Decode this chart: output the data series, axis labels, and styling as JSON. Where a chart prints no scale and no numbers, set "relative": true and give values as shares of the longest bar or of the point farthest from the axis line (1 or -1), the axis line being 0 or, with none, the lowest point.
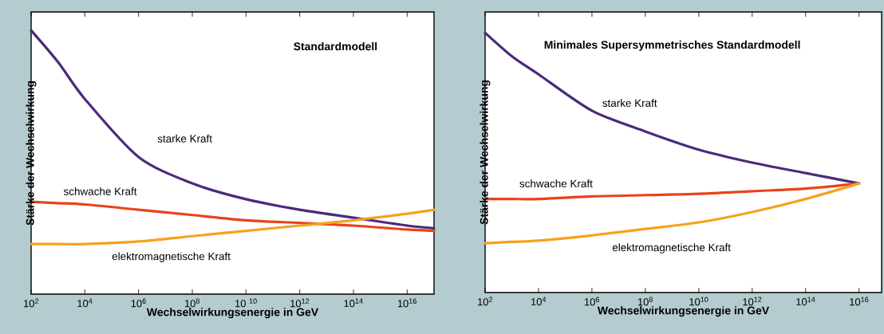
{
  "chart_data": [
    {
      "type": "line",
      "title": "Standardmodell",
      "xlabel": "Wechselwirkungsenergie in GeV",
      "ylabel": "Stärke der Wechselwirkung",
      "log": "x",
      "relative": true,
      "xlim": [
        100,
        1e+17
      ],
      "xticks": [
        {
          "value": 100,
          "label": "10$^{2}$"
        },
        {
          "value": 10000.0,
          "label": "10$^{4}$"
        },
        {
          "value": 1000000.0,
          "label": "10$^{6}$"
        },
        {
          "value": 100000000.0,
          "label": "10$^{8}$"
        },
        {
          "value": 10000000000.0,
          "label": "10 $^{10}$"
        },
        {
          "value": 1000000000000.0,
          "label": "10$^{12}$"
        },
        {
          "value": 100000000000000.0,
          "label": "10$^{14}$"
        },
        {
          "value": 1e+16,
          "label": "10$^{16}$"
        }
      ],
      "x": [
        100,
        1000,
        10000.0,
        1000000.0,
        100000000.0,
        10000000000.0,
        1000000000000.0,
        100000000000000.0,
        1e+16,
        1e+17
      ],
      "series": [
        {
          "name": "starke Kraft",
          "color": "#4b2a7b",
          "values": [
            1.0,
            0.88,
            0.74,
            0.52,
            0.42,
            0.36,
            0.32,
            0.29,
            0.26,
            0.25
          ]
        },
        {
          "name": "schwache Kraft",
          "color": "#e8431a",
          "values": [
            0.35,
            0.345,
            0.34,
            0.32,
            0.3,
            0.28,
            0.27,
            0.26,
            0.245,
            0.24
          ]
        },
        {
          "name": "elektromagnetische Kraft",
          "color": "#f5a21c",
          "values": [
            0.19,
            0.19,
            0.19,
            0.2,
            0.22,
            0.24,
            0.26,
            0.28,
            0.305,
            0.32
          ]
        }
      ]
    },
    {
      "type": "line",
      "title": "Minimales Supersymmetrisches Standardmodell",
      "xlabel": "Wechselwirkungsenergie in GeV",
      "ylabel": "Stärke der Wechselwirkung",
      "log": "x",
      "relative": true,
      "xlim": [
        100,
        7e+16
      ],
      "xticks": [
        {
          "value": 100,
          "label": "10$^{2}$"
        },
        {
          "value": 10000.0,
          "label": "10$^{4}$"
        },
        {
          "value": 1000000.0,
          "label": "10$^{6}$"
        },
        {
          "value": 100000000.0,
          "label": "10$^{8}$"
        },
        {
          "value": 10000000000.0,
          "label": "10$^{10}$"
        },
        {
          "value": 1000000000000.0,
          "label": "10$^{12}$"
        },
        {
          "value": 100000000000000.0,
          "label": "10$^{14}$"
        },
        {
          "value": 1e+16,
          "label": "10$^{16}$"
        }
      ],
      "x": [
        100,
        1000,
        10000.0,
        1000000.0,
        100000000.0,
        10000000000.0,
        1000000000000.0,
        100000000000000.0,
        1e+16
      ],
      "series": [
        {
          "name": "starke Kraft",
          "color": "#4b2a7b",
          "values": [
            1.0,
            0.91,
            0.84,
            0.7,
            0.62,
            0.55,
            0.5,
            0.46,
            0.42
          ]
        },
        {
          "name": "schwache Kraft",
          "color": "#e8431a",
          "values": [
            0.36,
            0.36,
            0.36,
            0.37,
            0.375,
            0.38,
            0.39,
            0.4,
            0.42
          ]
        },
        {
          "name": "elektromagnetische Kraft",
          "color": "#f5a21c",
          "values": [
            0.19,
            0.195,
            0.2,
            0.22,
            0.245,
            0.27,
            0.31,
            0.36,
            0.42
          ]
        }
      ]
    }
  ]
}
